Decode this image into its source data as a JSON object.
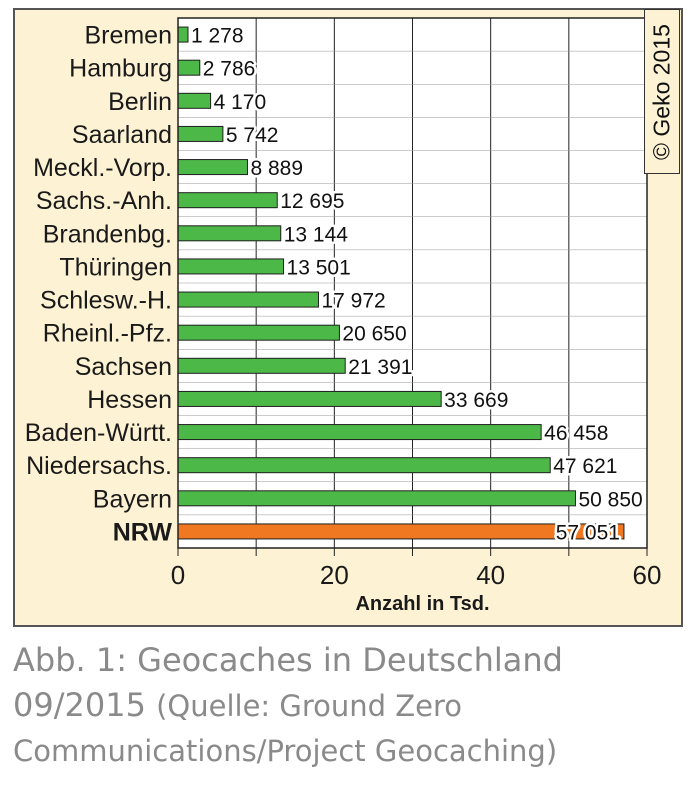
{
  "chart_data": {
    "type": "bar",
    "orientation": "horizontal",
    "categories": [
      "Bremen",
      "Hamburg",
      "Berlin",
      "Saarland",
      "Meckl.-Vorp.",
      "Sachs.-Anh.",
      "Brandenbg.",
      "Thüringen",
      "Schlesw.-H.",
      "Rheinl.-Pfz.",
      "Sachsen",
      "Hessen",
      "Baden-Württ.",
      "Niedersachs.",
      "Bayern",
      "NRW"
    ],
    "values": [
      1278,
      2786,
      4170,
      5742,
      8889,
      12695,
      13144,
      13501,
      17972,
      20650,
      21391,
      33669,
      46458,
      47621,
      50850,
      57051
    ],
    "value_labels": [
      "1 278",
      "2 786",
      "4 170",
      "5 742",
      "8 889",
      "12 695",
      "13 144",
      "13 501",
      "17 972",
      "20 650",
      "21 391",
      "33 669",
      "46 458",
      "47 621",
      "50 850",
      "57 051"
    ],
    "xlim": [
      0,
      60
    ],
    "xticks": [
      0,
      20,
      40,
      60
    ],
    "xlabel": "Anzahl in Tsd.",
    "grid": true,
    "colors": {
      "default_bar": "#4cb848",
      "highlight_bar": "#f07820",
      "highlight_label": "#e3001b",
      "background": "#fdf3d4",
      "plot_area": "#ffffff"
    },
    "highlight_category": "NRW"
  },
  "copyright": "© Geko 2015",
  "caption": {
    "line1": "Abb. 1: Geocaches in Deutschland",
    "line2_main": "09/2015",
    "line2_source": "(Quelle: Ground Zero",
    "line3": "Communications/Project Geocaching)"
  }
}
